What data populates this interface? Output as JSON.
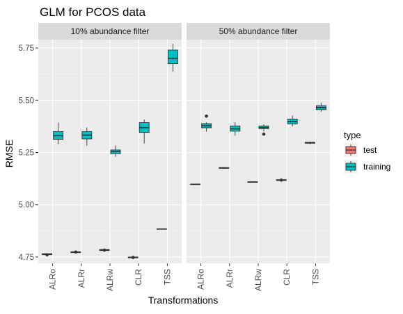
{
  "chart_data": {
    "type": "box",
    "title": "GLM for PCOS data",
    "xlabel": "Transformations",
    "ylabel": "RMSE",
    "ylim": [
      4.72,
      5.79
    ],
    "y_ticks": [
      "4.75",
      "5.00",
      "5.25",
      "5.50",
      "5.75"
    ],
    "y_tick_values": [
      4.75,
      5.0,
      5.25,
      5.5,
      5.75
    ],
    "categories": [
      "ALRo",
      "ALRr",
      "ALRw",
      "CLR",
      "TSS"
    ],
    "legend": {
      "title": "type",
      "position": "right",
      "entries": [
        {
          "name": "test",
          "color": "#F8766D"
        },
        {
          "name": "training",
          "color": "#00BFC4"
        }
      ]
    },
    "panels": [
      {
        "label": "10% abundance filter",
        "boxes": [
          {
            "category": "ALRo",
            "type": "test",
            "min": 4.757,
            "q1": 4.761,
            "median": 4.763,
            "q3": 4.766,
            "max": 4.768,
            "outliers": [
              4.76
            ]
          },
          {
            "category": "ALRo",
            "type": "training",
            "min": 5.29,
            "q1": 5.313,
            "median": 5.33,
            "q3": 5.35,
            "max": 5.393,
            "outliers": []
          },
          {
            "category": "ALRr",
            "type": "test",
            "min": 4.768,
            "q1": 4.771,
            "median": 4.773,
            "q3": 4.775,
            "max": 4.778,
            "outliers": [
              4.774
            ]
          },
          {
            "category": "ALRr",
            "type": "training",
            "min": 5.282,
            "q1": 5.315,
            "median": 5.333,
            "q3": 5.35,
            "max": 5.37,
            "outliers": []
          },
          {
            "category": "ALRw",
            "type": "test",
            "min": 4.779,
            "q1": 4.781,
            "median": 4.783,
            "q3": 4.786,
            "max": 4.789,
            "outliers": [
              4.783
            ]
          },
          {
            "category": "ALRw",
            "type": "training",
            "min": 5.23,
            "q1": 5.244,
            "median": 5.255,
            "q3": 5.262,
            "max": 5.284,
            "outliers": []
          },
          {
            "category": "CLR",
            "type": "test",
            "min": 4.743,
            "q1": 4.746,
            "median": 4.748,
            "q3": 4.75,
            "max": 4.752,
            "outliers": [
              4.748
            ]
          },
          {
            "category": "CLR",
            "type": "training",
            "min": 5.293,
            "q1": 5.346,
            "median": 5.369,
            "q3": 5.393,
            "max": 5.408,
            "outliers": []
          },
          {
            "category": "TSS",
            "type": "test",
            "min": 4.882,
            "q1": 4.883,
            "median": 4.884,
            "q3": 4.885,
            "max": 4.886,
            "outliers": []
          },
          {
            "category": "TSS",
            "type": "training",
            "min": 5.637,
            "q1": 5.675,
            "median": 5.7,
            "q3": 5.74,
            "max": 5.77,
            "outliers": []
          }
        ]
      },
      {
        "label": "50% abundance filter",
        "boxes": [
          {
            "category": "ALRo",
            "type": "test",
            "min": 5.096,
            "q1": 5.097,
            "median": 5.098,
            "q3": 5.099,
            "max": 5.1,
            "outliers": []
          },
          {
            "category": "ALRo",
            "type": "training",
            "min": 5.35,
            "q1": 5.368,
            "median": 5.378,
            "q3": 5.388,
            "max": 5.394,
            "outliers": [
              5.424
            ]
          },
          {
            "category": "ALRr",
            "type": "test",
            "min": 5.172,
            "q1": 5.174,
            "median": 5.176,
            "q3": 5.178,
            "max": 5.18,
            "outliers": []
          },
          {
            "category": "ALRr",
            "type": "training",
            "min": 5.33,
            "q1": 5.352,
            "median": 5.363,
            "q3": 5.377,
            "max": 5.395,
            "outliers": []
          },
          {
            "category": "ALRw",
            "type": "test",
            "min": 5.107,
            "q1": 5.108,
            "median": 5.109,
            "q3": 5.11,
            "max": 5.111,
            "outliers": []
          },
          {
            "category": "ALRw",
            "type": "training",
            "min": 5.35,
            "q1": 5.364,
            "median": 5.369,
            "q3": 5.377,
            "max": 5.385,
            "outliers": [
              5.338
            ]
          },
          {
            "category": "CLR",
            "type": "test",
            "min": 5.114,
            "q1": 5.116,
            "median": 5.118,
            "q3": 5.12,
            "max": 5.122,
            "outliers": [
              5.118
            ]
          },
          {
            "category": "CLR",
            "type": "training",
            "min": 5.375,
            "q1": 5.387,
            "median": 5.398,
            "q3": 5.41,
            "max": 5.426,
            "outliers": []
          },
          {
            "category": "TSS",
            "type": "test",
            "min": 5.29,
            "q1": 5.294,
            "median": 5.296,
            "q3": 5.299,
            "max": 5.302,
            "outliers": []
          },
          {
            "category": "TSS",
            "type": "training",
            "min": 5.445,
            "q1": 5.455,
            "median": 5.465,
            "q3": 5.474,
            "max": 5.488,
            "outliers": []
          }
        ]
      }
    ]
  }
}
